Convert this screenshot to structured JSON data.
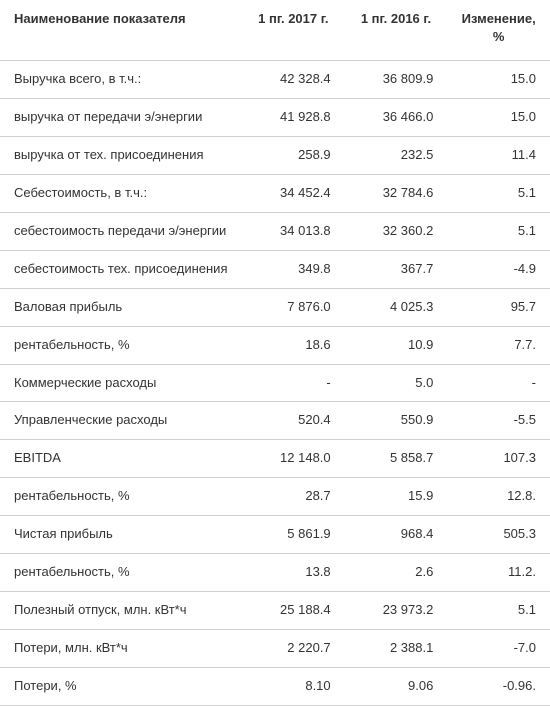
{
  "table": {
    "columns": [
      "Наименование показателя",
      "1 пг. 2017 г.",
      "1 пг. 2016 г.",
      "Изменение, %"
    ],
    "rows": [
      [
        "Выручка всего, в т.ч.:",
        "42 328.4",
        "36 809.9",
        "15.0"
      ],
      [
        "выручка от передачи э/энергии",
        "41 928.8",
        "36 466.0",
        "15.0"
      ],
      [
        "выручка от тех. присоединения",
        "258.9",
        "232.5",
        "11.4"
      ],
      [
        "Себестоимость, в т.ч.:",
        "34 452.4",
        "32 784.6",
        "5.1"
      ],
      [
        "себестоимость передачи э/энергии",
        "34 013.8",
        "32 360.2",
        "5.1"
      ],
      [
        "себестоимость тех. присоединения",
        "349.8",
        "367.7",
        "-4.9"
      ],
      [
        "Валовая прибыль",
        "7 876.0",
        "4 025.3",
        "95.7"
      ],
      [
        "рентабельность, %",
        "18.6",
        "10.9",
        "7.7."
      ],
      [
        "Коммерческие расходы",
        "-",
        "5.0",
        "-"
      ],
      [
        "Управленческие расходы",
        "520.4",
        "550.9",
        "-5.5"
      ],
      [
        "EBITDA",
        "12 148.0",
        "5 858.7",
        "107.3"
      ],
      [
        "рентабельность, %",
        "28.7",
        "15.9",
        "12.8."
      ],
      [
        "Чистая прибыль",
        "5 861.9",
        "968.4",
        "505.3"
      ],
      [
        "рентабельность, %",
        "13.8",
        "2.6",
        "11.2."
      ],
      [
        "Полезный отпуск, млн. кВт*ч",
        "25 188.4",
        "23 973.2",
        "5.1"
      ],
      [
        "Потери, млн. кВт*ч",
        "2 220.7",
        "2 388.1",
        "-7.0"
      ],
      [
        "Потери, %",
        "8.10",
        "9.06",
        "-0.96."
      ]
    ]
  }
}
